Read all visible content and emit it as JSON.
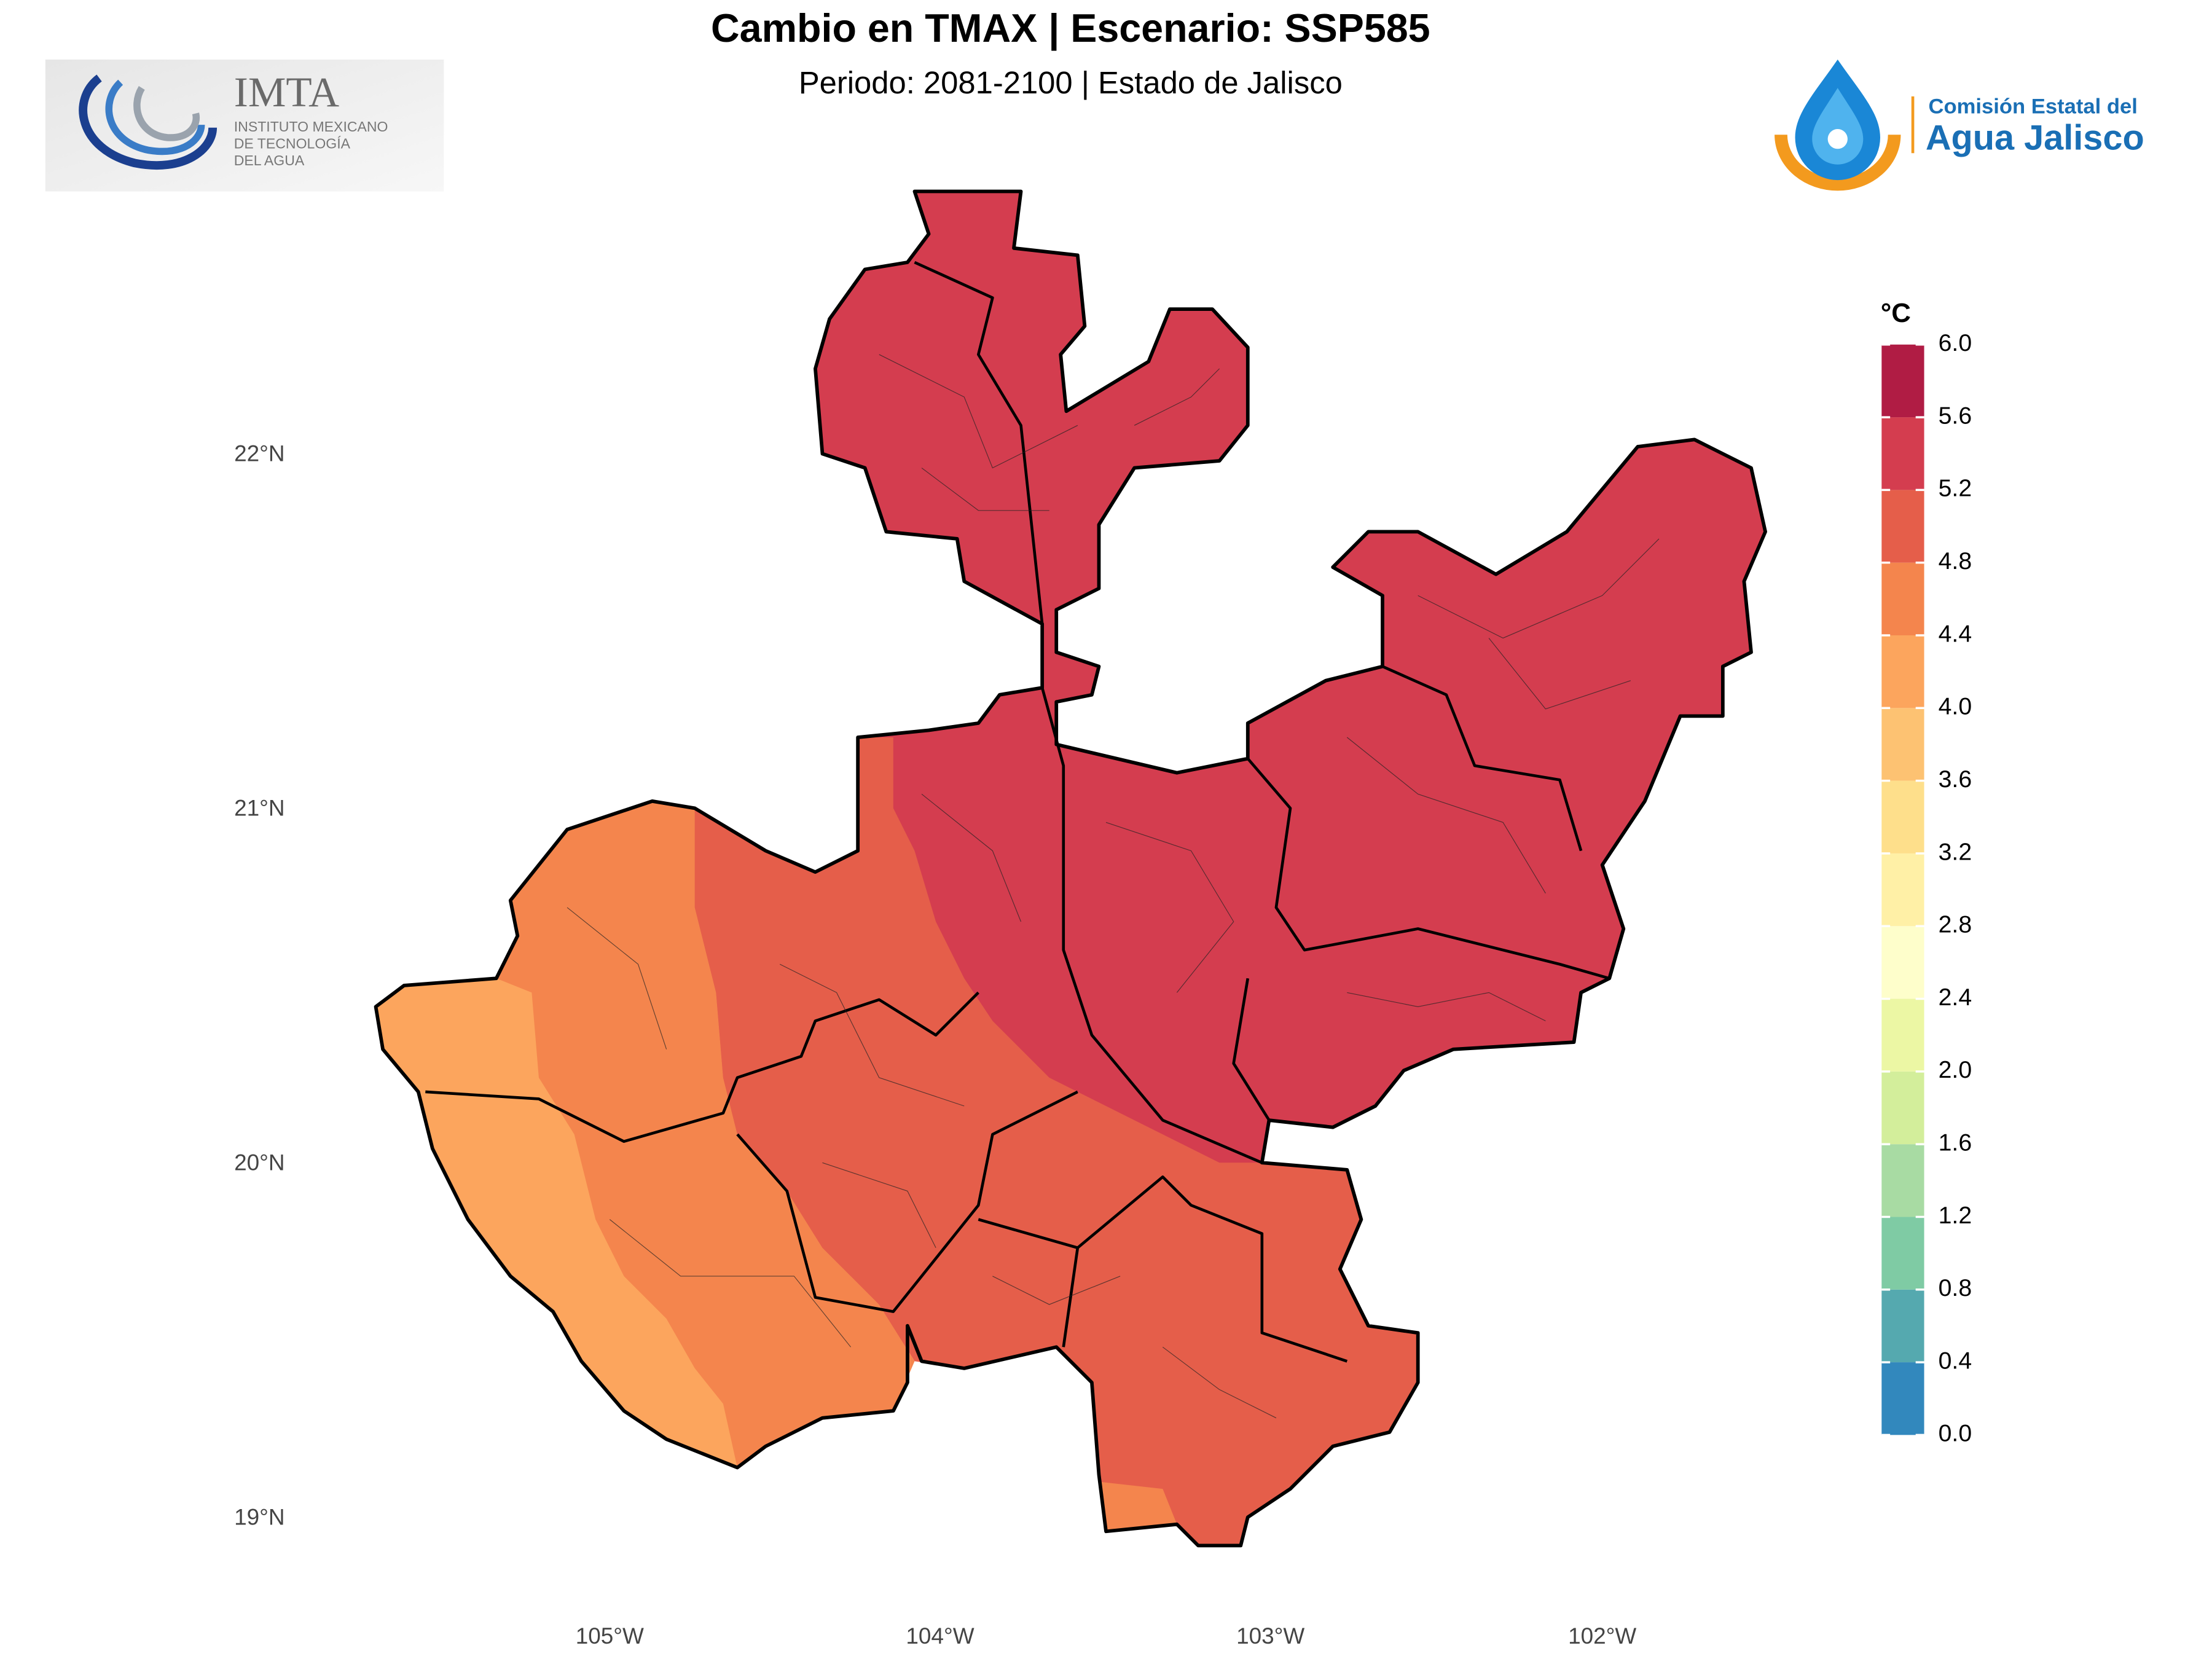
{
  "header": {
    "title": "Cambio en TMAX | Escenario: SSP585",
    "subtitle": "Periodo: 2081-2100 | Estado de Jalisco"
  },
  "logos": {
    "imta": {
      "name": "IMTA",
      "lines": [
        "INSTITUTO MEXICANO",
        "DE TECNOLOGÍA",
        "DEL AGUA"
      ]
    },
    "cea": {
      "line1": "Comisión Estatal del",
      "line2": "Agua Jalisco"
    }
  },
  "map": {
    "lat_labels": [
      "22°N",
      "21°N",
      "20°N",
      "19°N"
    ],
    "lon_labels": [
      "105°W",
      "104°W",
      "103°W",
      "102°W"
    ]
  },
  "legend": {
    "title": "°C",
    "ticks": [
      {
        "value": 0,
        "label": "0.0"
      },
      {
        "value": 0.4,
        "label": "0.4"
      },
      {
        "value": 0.8,
        "label": "0.8"
      },
      {
        "value": 1.2,
        "label": "1.2"
      },
      {
        "value": 1.6,
        "label": "1.6"
      },
      {
        "value": 2,
        "label": "2.0"
      },
      {
        "value": 2.4,
        "label": "2.4"
      },
      {
        "value": 2.8,
        "label": "2.8"
      },
      {
        "value": 3.2,
        "label": "3.2"
      },
      {
        "value": 3.6,
        "label": "3.6"
      },
      {
        "value": 4,
        "label": "4.0"
      },
      {
        "value": 4.4,
        "label": "4.4"
      },
      {
        "value": 4.8,
        "label": "4.8"
      },
      {
        "value": 5.2,
        "label": "5.2"
      },
      {
        "value": 5.6,
        "label": "5.6"
      },
      {
        "value": 6,
        "label": "6.0"
      }
    ],
    "colors": [
      "#5552a3",
      "#3288bd",
      "#55a9af",
      "#7fcba4",
      "#a8dba3",
      "#d3ee9b",
      "#ecf7a4",
      "#fefecb",
      "#fff0a6",
      "#fedf8b",
      "#fdc272",
      "#fca55d",
      "#f4854d",
      "#e55e4a",
      "#d43d4f",
      "#b01c44"
    ]
  }
}
